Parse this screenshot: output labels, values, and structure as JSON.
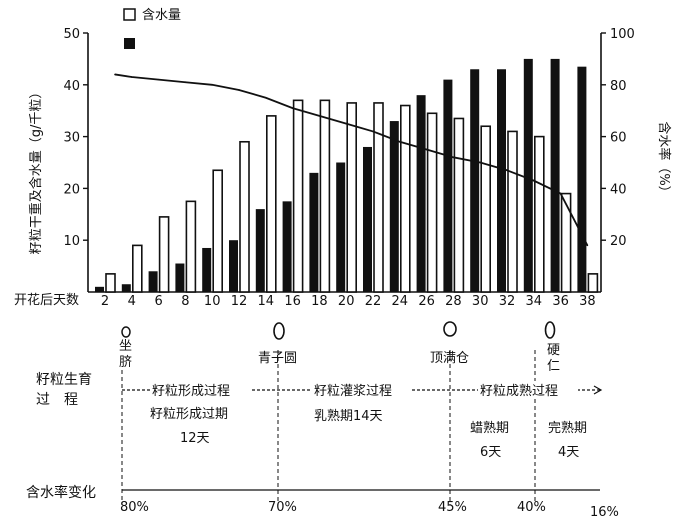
{
  "chart_data": {
    "type": "bar",
    "x_label": "开花后天数",
    "categories": [
      "2",
      "4",
      "6",
      "8",
      "10",
      "12",
      "14",
      "16",
      "18",
      "20",
      "22",
      "24",
      "26",
      "28",
      "30",
      "32",
      "34",
      "36",
      "38"
    ],
    "ylabel_left": "籽粒干重及含水量（g/千粒）",
    "ylabel_right": "含水率（%）",
    "ylim_left": [
      0,
      50
    ],
    "ylim_right": [
      0,
      100
    ],
    "left_ticks": [
      "10",
      "20",
      "30",
      "40",
      "50"
    ],
    "right_ticks": [
      "20",
      "40",
      "60",
      "80",
      "100"
    ],
    "series": [
      {
        "name": "含水量",
        "style": "hollow",
        "values": [
          3.5,
          9,
          14.5,
          17.5,
          23.5,
          29,
          34,
          37,
          37,
          36.5,
          36.5,
          36,
          34.5,
          33.5,
          32,
          31,
          30,
          19,
          3.5
        ]
      },
      {
        "name": "",
        "style": "filled",
        "values": [
          1,
          1.5,
          4,
          5.5,
          8.5,
          10,
          16,
          17.5,
          23,
          25,
          28,
          33,
          38,
          41,
          43,
          43,
          45,
          45,
          43.5
        ]
      }
    ],
    "moisture_line": {
      "x": [
        "2",
        "4",
        "6",
        "8",
        "10",
        "12",
        "14",
        "16",
        "18",
        "20",
        "22",
        "24",
        "26",
        "28",
        "30",
        "32",
        "34",
        "36",
        "38"
      ],
      "values": [
        84,
        83,
        82,
        81,
        80,
        78,
        75,
        71,
        68,
        65,
        62,
        58,
        55,
        52,
        50,
        47,
        43,
        38,
        18
      ]
    }
  },
  "legend": {
    "item1": "含水量",
    "item2": ""
  },
  "stages": {
    "s1": "坐脐",
    "s2": "青子圆",
    "s3": "顶满仓",
    "s4": "硬仁"
  },
  "process": {
    "label_line1": "籽粒生育",
    "label_line2": "过　程",
    "p1": "籽粒形成过程",
    "p2": "籽粒灌浆过程",
    "p3": "籽粒成熟过程",
    "period1_name": "籽粒形成过期",
    "period1_days": "12天",
    "period2": "乳熟期14天",
    "period3_name": "蜡熟期",
    "period3_days": "6天",
    "period4_name": "完熟期",
    "period4_days": "4天"
  },
  "moisture_change": {
    "label": "含水率变化",
    "v1": "80%",
    "v2": "70%",
    "v3": "45%",
    "v4": "40%",
    "v5": "16%"
  }
}
